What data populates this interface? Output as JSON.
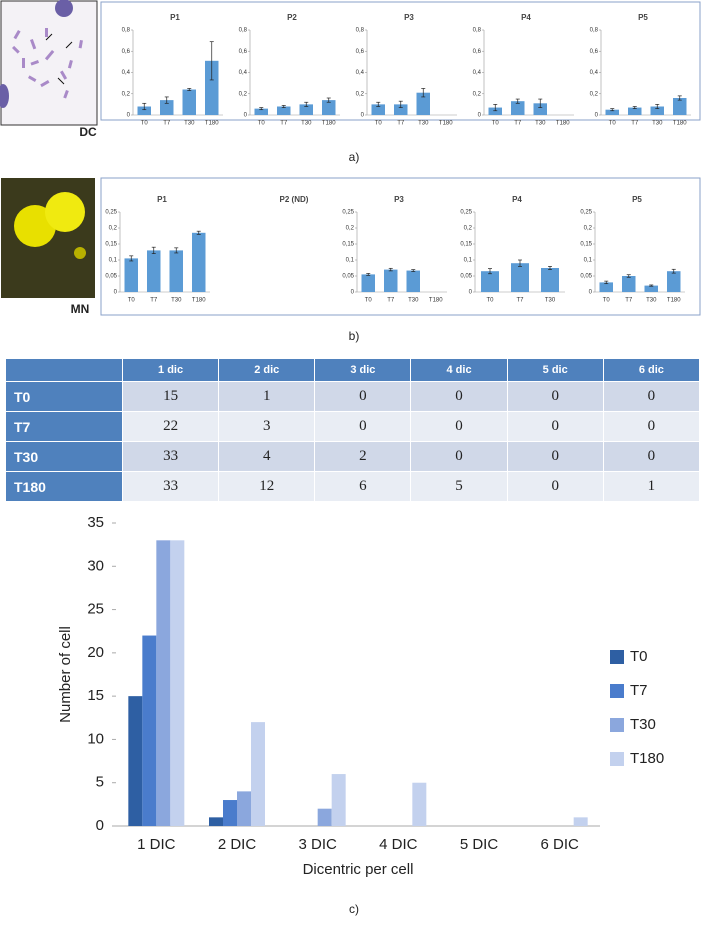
{
  "labels": {
    "dc": "DC",
    "mn": "MN",
    "a": "a)",
    "b": "b)",
    "c": "c)"
  },
  "table": {
    "columns": [
      "1 dic",
      "2 dic",
      "3 dic",
      "4 dic",
      "5 dic",
      "6 dic"
    ],
    "rows": [
      {
        "label": "T0",
        "cells": [
          15,
          1,
          0,
          0,
          0,
          0
        ]
      },
      {
        "label": "T7",
        "cells": [
          22,
          3,
          0,
          0,
          0,
          0
        ]
      },
      {
        "label": "T30",
        "cells": [
          33,
          4,
          2,
          0,
          0,
          0
        ]
      },
      {
        "label": "T180",
        "cells": [
          33,
          12,
          6,
          5,
          0,
          1
        ]
      }
    ]
  },
  "chart_data": [
    {
      "type": "bar",
      "title": "P1",
      "categories": [
        "T0",
        "T7",
        "T30",
        "T180"
      ],
      "values": [
        0.08,
        0.14,
        0.24,
        0.51
      ],
      "errors": [
        0.03,
        0.03,
        0.01,
        0.18
      ],
      "color": "#5b9bd5",
      "ylim": [
        0,
        0.8
      ],
      "yticks": [
        0,
        {
          "value": 0.2,
          "label": "0,2"
        },
        {
          "value": 0.4,
          "label": "0,4"
        },
        {
          "value": 0.6,
          "label": "0,6"
        },
        {
          "value": 0.8,
          "label": "0,8"
        }
      ]
    },
    {
      "type": "bar",
      "title": "P2",
      "categories": [
        "T0",
        "T7",
        "T30",
        "T180"
      ],
      "values": [
        0.06,
        0.08,
        0.1,
        0.14
      ],
      "errors": [
        0.01,
        0.01,
        0.02,
        0.02
      ],
      "color": "#5b9bd5",
      "ylim": [
        0,
        0.8
      ],
      "yticks": [
        0,
        {
          "value": 0.2,
          "label": "0,2"
        },
        {
          "value": 0.4,
          "label": "0,4"
        },
        {
          "value": 0.6,
          "label": "0,6"
        },
        {
          "value": 0.8,
          "label": "0,8"
        }
      ]
    },
    {
      "type": "bar",
      "title": "P3",
      "categories": [
        "T0",
        "T7",
        "T30",
        "T180"
      ],
      "values": [
        0.1,
        0.1,
        0.21,
        null
      ],
      "errors": [
        0.02,
        0.03,
        0.04,
        null
      ],
      "color": "#5b9bd5",
      "ylim": [
        0,
        0.8
      ],
      "yticks": [
        0,
        {
          "value": 0.2,
          "label": "0,2"
        },
        {
          "value": 0.4,
          "label": "0,4"
        },
        {
          "value": 0.6,
          "label": "0,6"
        },
        {
          "value": 0.8,
          "label": "0,8"
        }
      ]
    },
    {
      "type": "bar",
      "title": "P4",
      "categories": [
        "T0",
        "T7",
        "T30",
        "T180"
      ],
      "values": [
        0.07,
        0.13,
        0.11,
        null
      ],
      "errors": [
        0.03,
        0.02,
        0.04,
        null
      ],
      "color": "#5b9bd5",
      "ylim": [
        0,
        0.8
      ],
      "yticks": [
        0,
        {
          "value": 0.2,
          "label": "0,2"
        },
        {
          "value": 0.4,
          "label": "0,4"
        },
        {
          "value": 0.6,
          "label": "0,6"
        },
        {
          "value": 0.8,
          "label": "0,8"
        }
      ]
    },
    {
      "type": "bar",
      "title": "P5",
      "categories": [
        "T0",
        "T7",
        "T30",
        "T180"
      ],
      "values": [
        0.05,
        0.07,
        0.08,
        0.16
      ],
      "errors": [
        0.01,
        0.01,
        0.02,
        0.02
      ],
      "color": "#5b9bd5",
      "ylim": [
        0,
        0.8
      ],
      "yticks": [
        0,
        {
          "value": 0.2,
          "label": "0,2"
        },
        {
          "value": 0.4,
          "label": "0,4"
        },
        {
          "value": 0.6,
          "label": "0,6"
        },
        {
          "value": 0.8,
          "label": "0,8"
        }
      ]
    },
    {
      "type": "bar",
      "title": "P1",
      "categories": [
        "T0",
        "T7",
        "T30",
        "T180"
      ],
      "values": [
        0.105,
        0.13,
        0.13,
        0.185
      ],
      "errors": [
        0.008,
        0.01,
        0.008,
        0.005
      ],
      "color": "#5b9bd5",
      "ylim": [
        0,
        0.25
      ],
      "yticks": [
        0,
        {
          "value": 0.05,
          "label": "0,05"
        },
        {
          "value": 0.1,
          "label": "0,1"
        },
        {
          "value": 0.15,
          "label": "0,15"
        },
        {
          "value": 0.2,
          "label": "0,2"
        },
        {
          "value": 0.25,
          "label": "0,25"
        }
      ]
    },
    {
      "type": "bar",
      "title": "P2 (ND)"
    },
    {
      "type": "bar",
      "title": "P3",
      "categories": [
        "T0",
        "T7",
        "T30",
        "T180"
      ],
      "values": [
        0.055,
        0.07,
        0.067,
        null
      ],
      "errors": [
        0.003,
        0.004,
        0.003,
        null
      ],
      "color": "#5b9bd5",
      "ylim": [
        0,
        0.25
      ],
      "yticks": [
        0,
        {
          "value": 0.05,
          "label": "0,05"
        },
        {
          "value": 0.1,
          "label": "0,1"
        },
        {
          "value": 0.15,
          "label": "0,15"
        },
        {
          "value": 0.2,
          "label": "0,2"
        },
        {
          "value": 0.25,
          "label": "0,25"
        }
      ]
    },
    {
      "type": "bar",
      "title": "P4",
      "categories": [
        "T0",
        "T7",
        "T30"
      ],
      "values": [
        0.065,
        0.09,
        0.075
      ],
      "errors": [
        0.008,
        0.01,
        0.005
      ],
      "color": "#5b9bd5",
      "ylim": [
        0,
        0.25
      ],
      "yticks": [
        0,
        {
          "value": 0.05,
          "label": "0,05"
        },
        {
          "value": 0.1,
          "label": "0,1"
        },
        {
          "value": 0.15,
          "label": "0,15"
        },
        {
          "value": 0.2,
          "label": "0,2"
        },
        {
          "value": 0.25,
          "label": "0,25"
        }
      ]
    },
    {
      "type": "bar",
      "title": "P5",
      "categories": [
        "T0",
        "T7",
        "T30",
        "T180"
      ],
      "values": [
        0.03,
        0.05,
        0.02,
        0.065
      ],
      "errors": [
        0.004,
        0.004,
        0.002,
        0.006
      ],
      "color": "#5b9bd5",
      "ylim": [
        0,
        0.25
      ],
      "yticks": [
        0,
        {
          "value": 0.05,
          "label": "0,05"
        },
        {
          "value": 0.1,
          "label": "0,1"
        },
        {
          "value": 0.15,
          "label": "0,15"
        },
        {
          "value": 0.2,
          "label": "0,2"
        },
        {
          "value": 0.25,
          "label": "0,25"
        }
      ]
    },
    {
      "type": "grouped-bar",
      "xlabel": "Dicentric per cell",
      "ylabel": "Number of cell",
      "categories": [
        "1 DIC",
        "2 DIC",
        "3 DIC",
        "4 DIC",
        "5 DIC",
        "6 DIC"
      ],
      "series": [
        {
          "name": "T0",
          "color": "#2e5fa3",
          "values": [
            15,
            1,
            0,
            0,
            0,
            0
          ]
        },
        {
          "name": "T7",
          "color": "#4a7ccc",
          "values": [
            22,
            3,
            0,
            0,
            0,
            0
          ]
        },
        {
          "name": "T30",
          "color": "#8ba7dd",
          "values": [
            33,
            4,
            2,
            0,
            0,
            0
          ]
        },
        {
          "name": "T180",
          "color": "#c3d1ee",
          "values": [
            33,
            12,
            6,
            5,
            0,
            1
          ]
        }
      ],
      "ylim": [
        0,
        35
      ],
      "yticks": [
        0,
        5,
        10,
        15,
        20,
        25,
        30,
        35
      ],
      "legend": "right"
    }
  ]
}
